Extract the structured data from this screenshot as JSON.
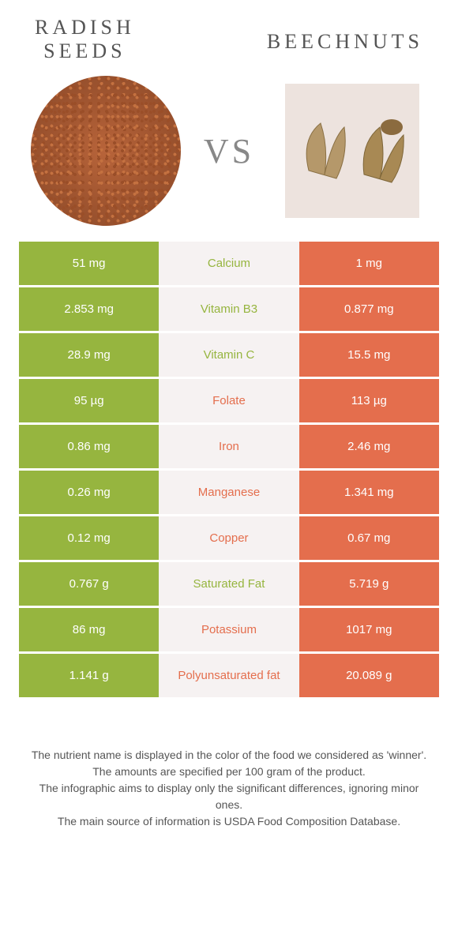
{
  "titles": {
    "left_line1": "RADISH",
    "left_line2": "SEEDS",
    "right": "BEECHNUTS",
    "vs": "VS"
  },
  "colors": {
    "green": "#96b53f",
    "orange": "#e46e4d",
    "mid_bg": "#f6f2f2",
    "title_text": "#555555",
    "footer_text": "#555555"
  },
  "rows": [
    {
      "left": "51 mg",
      "label": "Calcium",
      "right": "1 mg",
      "winner": "left"
    },
    {
      "left": "2.853 mg",
      "label": "Vitamin B3",
      "right": "0.877 mg",
      "winner": "left"
    },
    {
      "left": "28.9 mg",
      "label": "Vitamin C",
      "right": "15.5 mg",
      "winner": "left"
    },
    {
      "left": "95 µg",
      "label": "Folate",
      "right": "113 µg",
      "winner": "right"
    },
    {
      "left": "0.86 mg",
      "label": "Iron",
      "right": "2.46 mg",
      "winner": "right"
    },
    {
      "left": "0.26 mg",
      "label": "Manganese",
      "right": "1.341 mg",
      "winner": "right"
    },
    {
      "left": "0.12 mg",
      "label": "Copper",
      "right": "0.67 mg",
      "winner": "right"
    },
    {
      "left": "0.767 g",
      "label": "Saturated Fat",
      "right": "5.719 g",
      "winner": "left"
    },
    {
      "left": "86 mg",
      "label": "Potassium",
      "right": "1017 mg",
      "winner": "right"
    },
    {
      "left": "1.141 g",
      "label": "Polyunsaturated fat",
      "right": "20.089 g",
      "winner": "right"
    }
  ],
  "footer": {
    "line1": "The nutrient name is displayed in the color of the food we considered as 'winner'.",
    "line2": "The amounts are specified per 100 gram of the product.",
    "line3": "The infographic aims to display only the significant differences, ignoring minor ones.",
    "line4": "The main source of information is USDA Food Composition Database."
  }
}
